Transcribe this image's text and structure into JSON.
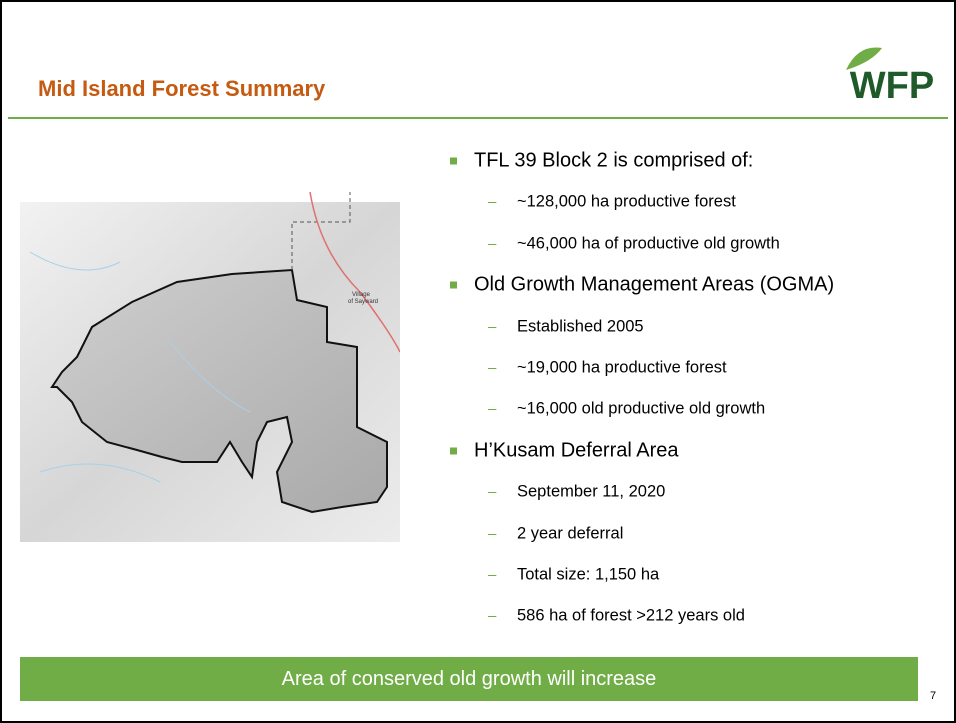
{
  "header": {
    "title": "Mid Island Forest Summary",
    "logo": "WFP"
  },
  "map": {
    "label": [
      "Village",
      "of Sayward"
    ]
  },
  "bullets": [
    {
      "text": "TFL 39 Block 2 is comprised of:",
      "items": [
        "~128,000 ha productive forest",
        "~46,000 ha of productive old growth"
      ]
    },
    {
      "text": "Old Growth Management Areas (OGMA)",
      "items": [
        "Established 2005",
        "~19,000 ha productive forest",
        "~16,000 old productive old growth"
      ]
    },
    {
      "text": "H’Kusam Deferral Area",
      "items": [
        "September 11, 2020",
        "2 year deferral",
        "Total size: 1,150 ha",
        "586 ha of forest >212 years old"
      ]
    }
  ],
  "banner": "Area of conserved old growth will increase",
  "page_number": "7"
}
